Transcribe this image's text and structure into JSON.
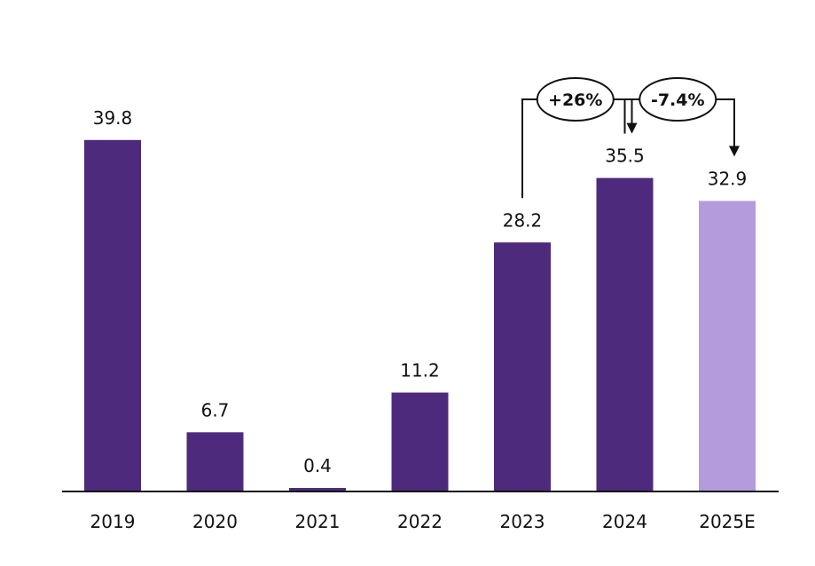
{
  "chart_data": {
    "type": "bar",
    "categories": [
      "2019",
      "2020",
      "2021",
      "2022",
      "2023",
      "2024",
      "2025E"
    ],
    "values": [
      39.8,
      6.7,
      0.4,
      11.2,
      28.2,
      35.5,
      32.9
    ],
    "value_labels": [
      "39.8",
      "6.7",
      "0.4",
      "11.2",
      "28.2",
      "35.5",
      "32.9"
    ],
    "estimate": [
      false,
      false,
      false,
      false,
      false,
      false,
      true
    ],
    "ylim": [
      0,
      44
    ],
    "grid": false,
    "legend": "none",
    "title": "",
    "xlabel": "",
    "ylabel": "",
    "annotations": [
      {
        "text": "+26%",
        "from": "2023",
        "to": "2024"
      },
      {
        "text": "-7.4%",
        "from": "2024",
        "to": "2025E"
      }
    ]
  },
  "colors": {
    "actual": "#4d2a7c",
    "estimate": "#b49bdb",
    "axis": "#111111",
    "connector": "#111111"
  }
}
